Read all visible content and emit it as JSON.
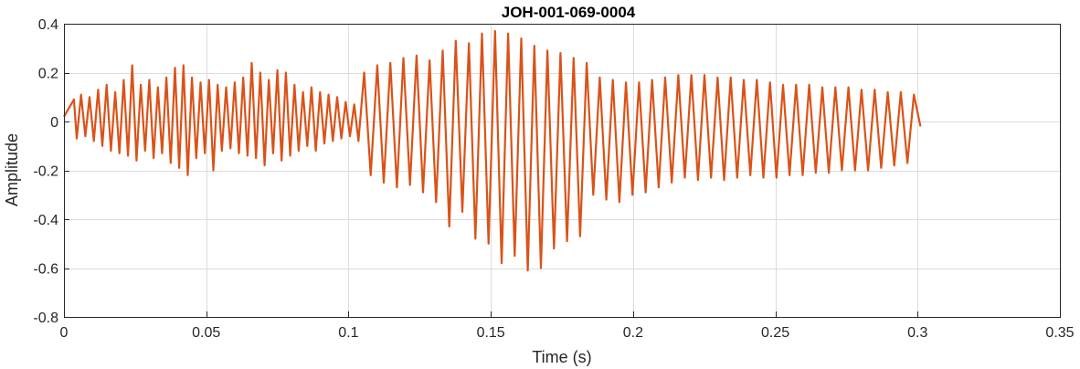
{
  "chart_data": {
    "type": "line",
    "title": "JOH-001-069-0004",
    "xlabel": "Time (s)",
    "ylabel": "Amplitude",
    "xlim": [
      0,
      0.35
    ],
    "ylim": [
      -0.8,
      0.4
    ],
    "xticks": [
      0,
      0.05,
      0.1,
      0.15,
      0.2,
      0.25,
      0.3,
      0.35
    ],
    "xtick_labels": [
      "0",
      "0.05",
      "0.1",
      "0.15",
      "0.2",
      "0.25",
      "0.3",
      "0.35"
    ],
    "yticks": [
      -0.8,
      -0.6,
      -0.4,
      -0.2,
      0,
      0.2,
      0.4
    ],
    "ytick_labels": [
      "-0.8",
      "-0.6",
      "-0.4",
      "-0.2",
      "0",
      "0.2",
      "0.4"
    ],
    "grid": true,
    "line_color": "#D95319",
    "series": [
      {
        "x": [
          0,
          0.0035,
          0.0045,
          0.006,
          0.0075,
          0.009,
          0.0105,
          0.012,
          0.0135,
          0.015,
          0.0165,
          0.018,
          0.0195,
          0.021,
          0.0225,
          0.024,
          0.0255,
          0.027,
          0.0285,
          0.03,
          0.0315,
          0.033,
          0.0345,
          0.036,
          0.0375,
          0.039,
          0.0405,
          0.042,
          0.0435,
          0.045,
          0.0465,
          0.048,
          0.0495,
          0.051,
          0.0525,
          0.054,
          0.0555,
          0.057,
          0.0585,
          0.06,
          0.0615,
          0.063,
          0.0645,
          0.066,
          0.0675,
          0.069,
          0.0705,
          0.072,
          0.0735,
          0.075,
          0.0765,
          0.078,
          0.0795,
          0.081,
          0.0825,
          0.084,
          0.0855,
          0.087,
          0.0885,
          0.09,
          0.0915,
          0.093,
          0.0945,
          0.096,
          0.0975,
          0.099,
          0.1005,
          0.102,
          0.1035,
          0.1055,
          0.1078,
          0.1101,
          0.1124,
          0.1147,
          0.117,
          0.1193,
          0.1216,
          0.1239,
          0.1262,
          0.1285,
          0.1308,
          0.1331,
          0.1354,
          0.1377,
          0.14,
          0.1423,
          0.1446,
          0.1469,
          0.1492,
          0.1515,
          0.1538,
          0.1561,
          0.1584,
          0.1607,
          0.163,
          0.1653,
          0.1676,
          0.1699,
          0.1722,
          0.1745,
          0.1768,
          0.1791,
          0.1814,
          0.1837,
          0.186,
          0.1883,
          0.1906,
          0.1929,
          0.1952,
          0.1975,
          0.1998,
          0.2021,
          0.2044,
          0.2067,
          0.209,
          0.2113,
          0.2136,
          0.2159,
          0.2182,
          0.2205,
          0.2228,
          0.2251,
          0.2274,
          0.2297,
          0.232,
          0.2343,
          0.2366,
          0.2389,
          0.2412,
          0.2435,
          0.2458,
          0.2481,
          0.2504,
          0.2527,
          0.255,
          0.2573,
          0.2596,
          0.2619,
          0.2642,
          0.2665,
          0.2688,
          0.2711,
          0.2734,
          0.2757,
          0.278,
          0.2803,
          0.2826,
          0.2849,
          0.2872,
          0.2895,
          0.2918,
          0.2941,
          0.2964,
          0.2987,
          0.301
        ],
        "y": [
          0.02,
          0.09,
          -0.07,
          0.11,
          -0.06,
          0.1,
          -0.08,
          0.13,
          -0.1,
          0.15,
          -0.12,
          0.12,
          -0.13,
          0.17,
          -0.14,
          0.23,
          -0.16,
          0.15,
          -0.12,
          0.17,
          -0.15,
          0.14,
          -0.13,
          0.18,
          -0.17,
          0.22,
          -0.19,
          0.23,
          -0.22,
          0.18,
          -0.15,
          0.16,
          -0.13,
          0.17,
          -0.2,
          0.15,
          -0.12,
          0.14,
          -0.11,
          0.16,
          -0.13,
          0.18,
          -0.14,
          0.24,
          -0.15,
          0.2,
          -0.18,
          0.17,
          -0.13,
          0.21,
          -0.16,
          0.2,
          -0.14,
          0.15,
          -0.12,
          0.12,
          -0.1,
          0.14,
          -0.12,
          0.12,
          -0.09,
          0.11,
          -0.08,
          0.1,
          -0.07,
          0.08,
          -0.06,
          0.07,
          -0.08,
          0.2,
          -0.22,
          0.23,
          -0.25,
          0.24,
          -0.27,
          0.26,
          -0.26,
          0.27,
          -0.29,
          0.25,
          -0.33,
          0.29,
          -0.43,
          0.33,
          -0.37,
          0.32,
          -0.48,
          0.36,
          -0.5,
          0.37,
          -0.58,
          0.36,
          -0.55,
          0.34,
          -0.61,
          0.31,
          -0.6,
          0.29,
          -0.52,
          0.28,
          -0.49,
          0.26,
          -0.47,
          0.24,
          -0.3,
          0.18,
          -0.32,
          0.17,
          -0.33,
          0.16,
          -0.3,
          0.16,
          -0.29,
          0.17,
          -0.27,
          0.18,
          -0.25,
          0.19,
          -0.23,
          0.19,
          -0.24,
          0.19,
          -0.23,
          0.18,
          -0.24,
          0.18,
          -0.23,
          0.17,
          -0.22,
          0.17,
          -0.23,
          0.16,
          -0.23,
          0.15,
          -0.22,
          0.15,
          -0.22,
          0.15,
          -0.21,
          0.14,
          -0.21,
          0.14,
          -0.2,
          0.14,
          -0.2,
          0.13,
          -0.2,
          0.13,
          -0.19,
          0.12,
          -0.18,
          0.12,
          -0.17,
          0.11,
          -0.02
        ]
      }
    ]
  }
}
